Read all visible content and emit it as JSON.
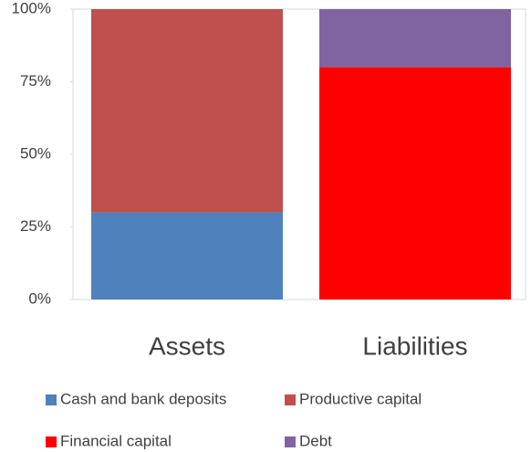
{
  "chart_data": {
    "type": "stacked_bar",
    "categories": [
      "Assets",
      "Liabilities"
    ],
    "series": [
      {
        "name": "Cash and bank deposits",
        "color": "#4f81bd",
        "values": [
          30,
          null
        ]
      },
      {
        "name": "Productive capital",
        "color": "#c0504d",
        "values": [
          70,
          null
        ]
      },
      {
        "name": "Financial capital",
        "color": "#ff0000",
        "values": [
          null,
          80
        ]
      },
      {
        "name": "Debt",
        "color": "#8064a2",
        "values": [
          null,
          20
        ]
      }
    ],
    "ylim": [
      0,
      100
    ],
    "yticks": [
      {
        "value": 0,
        "label": "0%"
      },
      {
        "value": 25,
        "label": "25%"
      },
      {
        "value": 50,
        "label": "50%"
      },
      {
        "value": 75,
        "label": "75%"
      },
      {
        "value": 100,
        "label": "100%"
      }
    ]
  }
}
